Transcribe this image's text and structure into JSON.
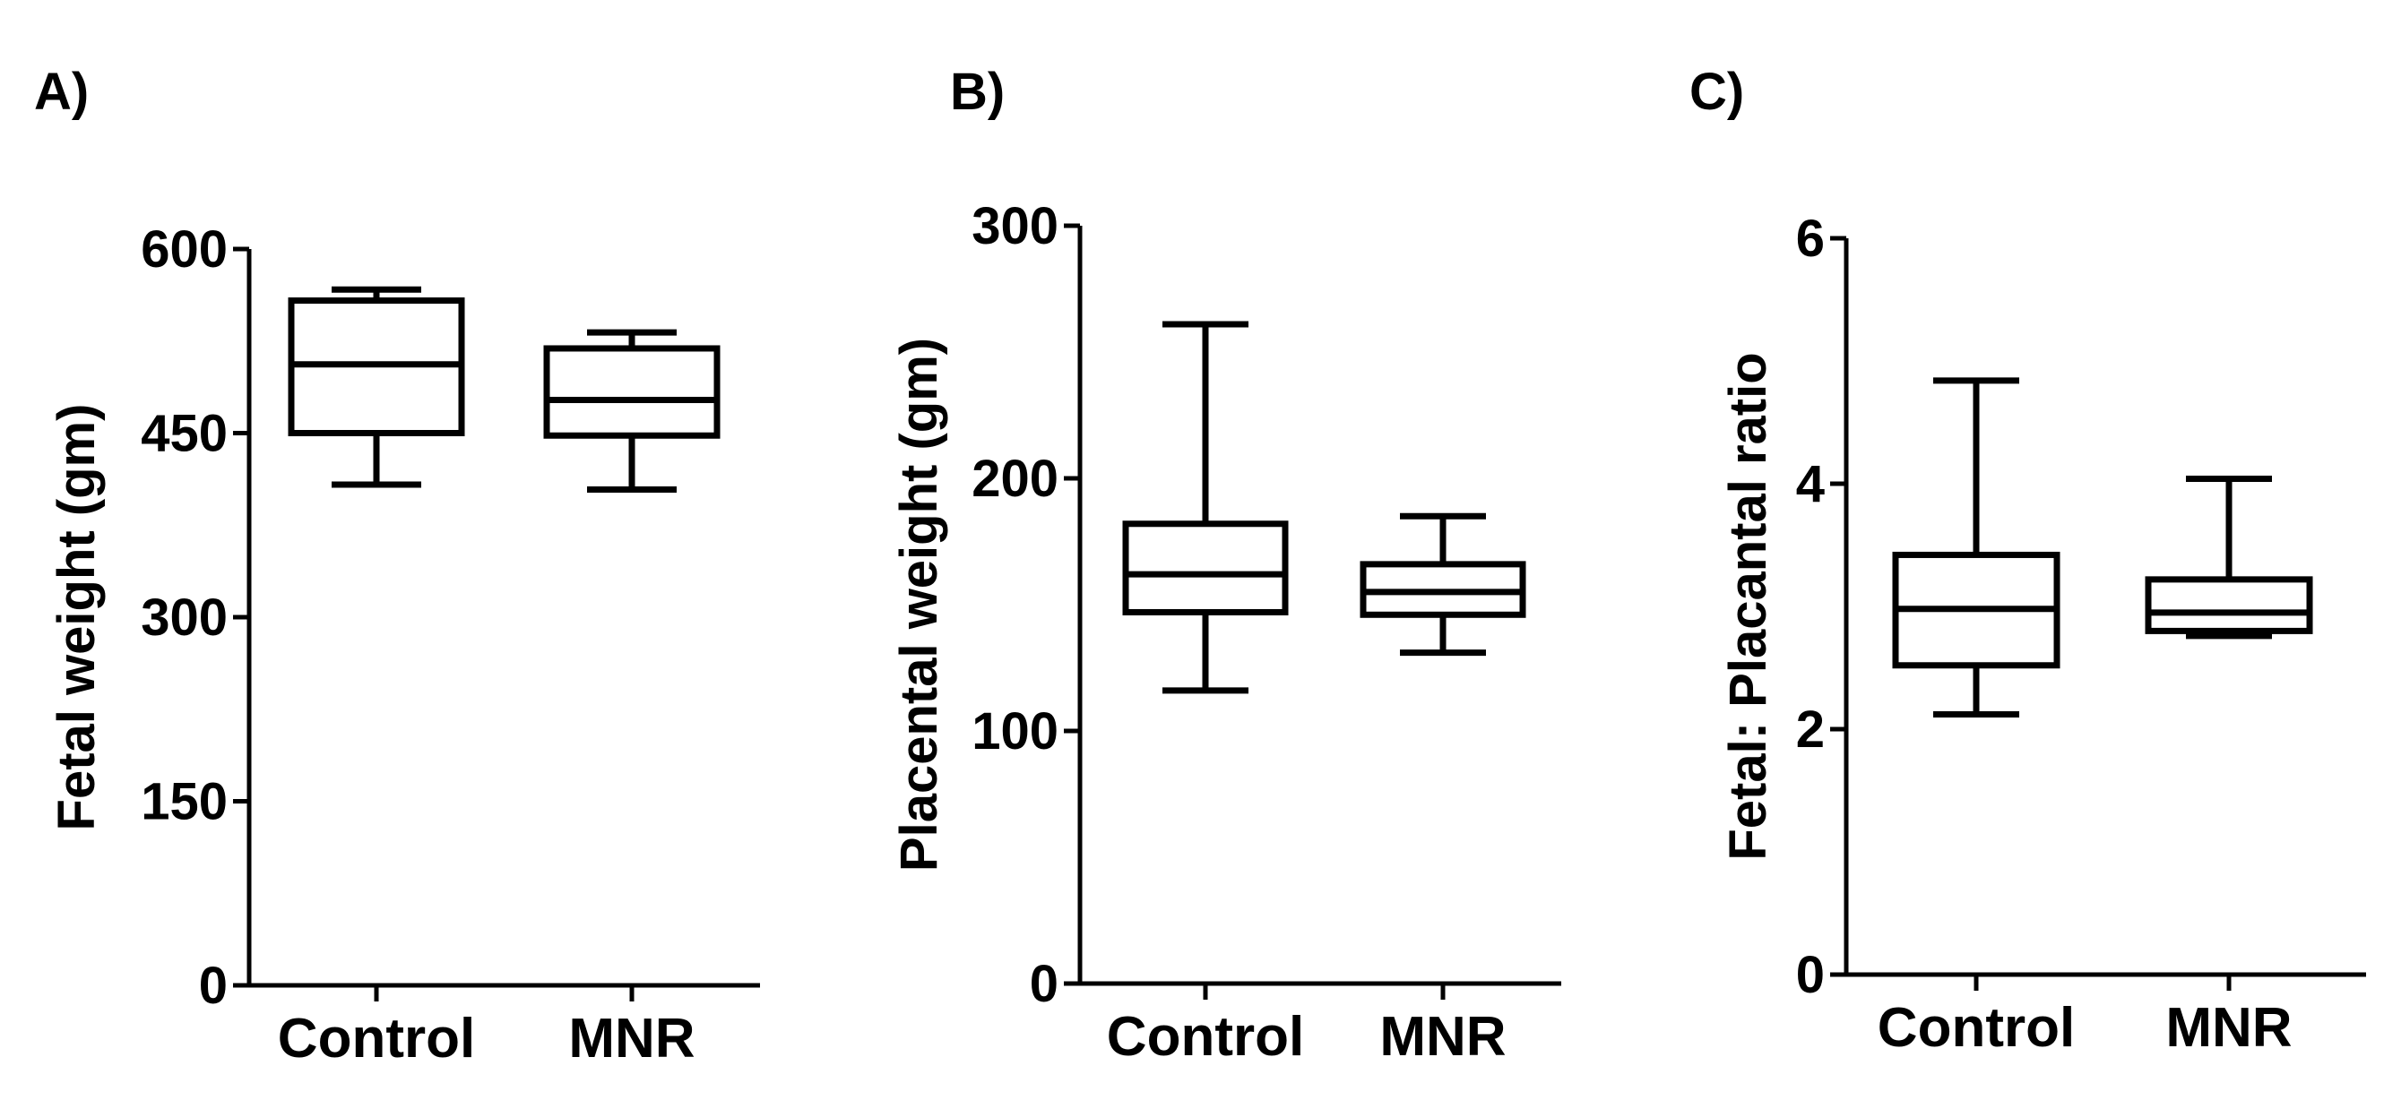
{
  "figure": {
    "panel_labels": [
      "A)",
      "B)",
      "C)"
    ]
  },
  "chart_data": [
    {
      "type": "box",
      "panel": "A)",
      "ylabel": "Fetal weight (gm)",
      "ylim": [
        0,
        600
      ],
      "yticks": [
        0,
        150,
        300,
        450,
        600
      ],
      "categories": [
        "Control",
        "MNR"
      ],
      "boxes": [
        {
          "category": "Control",
          "min": 408,
          "q1": 450,
          "median": 506,
          "q3": 558,
          "max": 567
        },
        {
          "category": "MNR",
          "min": 404,
          "q1": 448,
          "median": 477,
          "q3": 519,
          "max": 532
        }
      ]
    },
    {
      "type": "box",
      "panel": "B)",
      "ylabel": "Placental weight (gm)",
      "ylim": [
        0,
        300
      ],
      "yticks": [
        0,
        100,
        200,
        300
      ],
      "categories": [
        "Control",
        "MNR"
      ],
      "boxes": [
        {
          "category": "Control",
          "min": 116,
          "q1": 147,
          "median": 162,
          "q3": 182,
          "max": 261
        },
        {
          "category": "MNR",
          "min": 131,
          "q1": 146,
          "median": 155,
          "q3": 166,
          "max": 185
        }
      ]
    },
    {
      "type": "box",
      "panel": "C)",
      "ylabel": "Fetal: Placantal ratio",
      "ylim": [
        0,
        6
      ],
      "yticks": [
        0,
        2,
        4,
        6
      ],
      "categories": [
        "Control",
        "MNR"
      ],
      "boxes": [
        {
          "category": "Control",
          "min": 2.12,
          "q1": 2.52,
          "median": 2.98,
          "q3": 3.42,
          "max": 4.84
        },
        {
          "category": "MNR",
          "min": 2.76,
          "q1": 2.8,
          "median": 2.95,
          "q3": 3.22,
          "max": 4.04
        }
      ]
    }
  ]
}
